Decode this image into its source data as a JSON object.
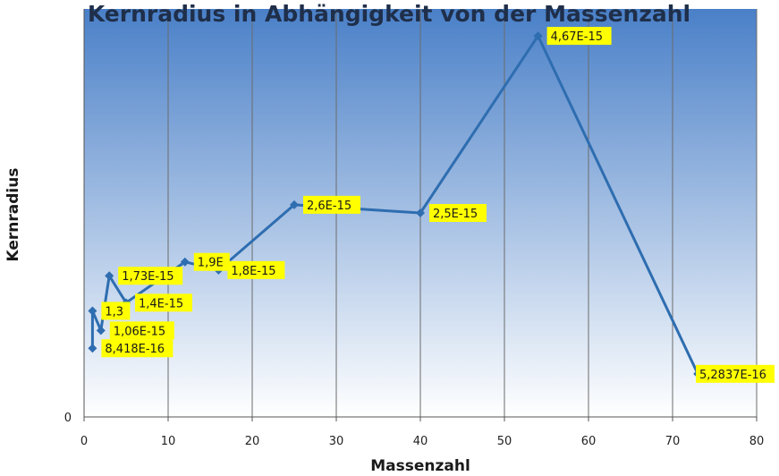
{
  "chart_data": {
    "type": "line",
    "title": "Kernradius in Abhängigkeit von der Massenzahl",
    "xlabel": "Massenzahl",
    "ylabel": "Kernradius",
    "xlim": [
      0,
      80
    ],
    "ylim": [
      0,
      5e-15
    ],
    "x_ticks": [
      "0",
      "10",
      "20",
      "30",
      "40",
      "50",
      "60",
      "70",
      "80"
    ],
    "y_ticks": [
      "0"
    ],
    "grid": "vertical",
    "legend": "none",
    "colors": {
      "line": "#2e6db0",
      "label_bg": "#ffff00",
      "plot_top": "#4a80c8",
      "plot_bottom": "#ffffff"
    },
    "series": [
      {
        "points": [
          {
            "x": 1,
            "y": 8.418e-16,
            "label": "8,418E-16"
          },
          {
            "x": 1,
            "y": 1.3e-15,
            "label": "1,3"
          },
          {
            "x": 2,
            "y": 1.06e-15,
            "label": "1,06E-15"
          },
          {
            "x": 3,
            "y": 1.73e-15,
            "label": "1,73E-15"
          },
          {
            "x": 5,
            "y": 1.4e-15,
            "label": "1,4E-15"
          },
          {
            "x": 12,
            "y": 1.9e-15,
            "label": "1,9E"
          },
          {
            "x": 16,
            "y": 1.8e-15,
            "label": "1,8E-15"
          },
          {
            "x": 25,
            "y": 2.6e-15,
            "label": "2,6E-15"
          },
          {
            "x": 40,
            "y": 2.5e-15,
            "label": "2,5E-15"
          },
          {
            "x": 54,
            "y": 4.67e-15,
            "label": "4,67E-15"
          },
          {
            "x": 73,
            "y": 5.2837e-16,
            "label": "5,2837E-16"
          }
        ]
      }
    ]
  }
}
